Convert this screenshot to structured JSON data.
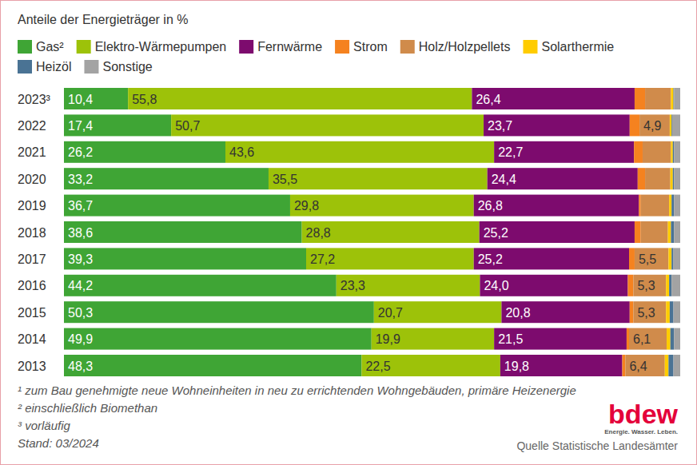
{
  "chart_data": {
    "type": "bar",
    "orientation": "horizontal",
    "stacked": true,
    "data_labels": true,
    "tick_labels": "y",
    "grid": false,
    "legend": "top",
    "title": "Anteile der Energieträger in %",
    "categories": [
      "2023³",
      "2022",
      "2021",
      "2020",
      "2019",
      "2018",
      "2017",
      "2016",
      "2015",
      "2014",
      "2013"
    ],
    "xlim": [
      0,
      100
    ],
    "series": [
      {
        "name": "Gas²",
        "color": "#3fa535",
        "values": [
          10.4,
          17.4,
          26.2,
          33.2,
          36.7,
          38.6,
          39.3,
          44.2,
          50.3,
          49.9,
          48.3
        ],
        "value_labels": [
          "10,4",
          "17,4",
          "26,2",
          "33,2",
          "36,7",
          "38,6",
          "39,3",
          "44,2",
          "50,3",
          "49,9",
          "48,3"
        ]
      },
      {
        "name": "Elektro-Wärmepumpen",
        "color": "#9dc209",
        "values": [
          55.8,
          50.7,
          43.6,
          35.5,
          29.8,
          28.8,
          27.2,
          23.3,
          20.7,
          19.9,
          22.5
        ],
        "value_labels": [
          "55,8",
          "50,7",
          "43,6",
          "35,5",
          "29,8",
          "28,8",
          "27,2",
          "23,3",
          "20,7",
          "19,9",
          "22,5"
        ]
      },
      {
        "name": "Fernwärme",
        "color": "#7d0b6e",
        "values": [
          26.4,
          23.7,
          22.7,
          24.4,
          26.8,
          25.2,
          25.2,
          24.0,
          20.8,
          21.5,
          19.8
        ],
        "value_labels": [
          "26,4",
          "23,7",
          "22,7",
          "24,4",
          "26,8",
          "25,2",
          "25,2",
          "24,0",
          "20,8",
          "21,5",
          "19,8"
        ]
      },
      {
        "name": "Strom",
        "color": "#f5821f",
        "values": [
          1.7,
          1.6,
          1.4,
          1.2,
          0.3,
          1.0,
          0.9,
          0.9,
          0.6,
          0.4,
          0.5
        ],
        "value_labels": [
          null,
          null,
          null,
          null,
          null,
          null,
          null,
          null,
          null,
          null,
          null
        ]
      },
      {
        "name": "Holz/Holzpellets",
        "color": "#d08b4b",
        "values": [
          4.2,
          4.9,
          4.6,
          4.1,
          4.6,
          4.4,
          5.5,
          5.3,
          5.3,
          6.1,
          6.4
        ],
        "value_labels": [
          null,
          "4,9",
          null,
          null,
          null,
          null,
          "5,5",
          "5,3",
          "5,3",
          "6,1",
          "6,4"
        ]
      },
      {
        "name": "Solarthermie",
        "color": "#ffcc00",
        "values": [
          0.4,
          0.3,
          0.3,
          0.4,
          0.4,
          0.5,
          0.5,
          0.5,
          0.6,
          0.6,
          0.6
        ],
        "value_labels": [
          null,
          null,
          null,
          null,
          null,
          null,
          null,
          null,
          null,
          null,
          null
        ]
      },
      {
        "name": "Heizöl",
        "color": "#4a7394",
        "values": [
          0.1,
          0.1,
          0.2,
          0.2,
          0.4,
          0.5,
          0.3,
          0.4,
          0.6,
          0.6,
          0.8
        ],
        "value_labels": [
          null,
          null,
          null,
          null,
          null,
          null,
          null,
          null,
          null,
          null,
          null
        ]
      },
      {
        "name": "Sonstige",
        "color": "#a3a3a3",
        "values": [
          1.0,
          1.3,
          1.0,
          1.0,
          1.0,
          1.0,
          1.1,
          1.4,
          1.1,
          1.0,
          1.1
        ],
        "value_labels": [
          null,
          null,
          null,
          null,
          null,
          null,
          null,
          null,
          null,
          null,
          null
        ]
      }
    ],
    "footnotes": [
      "¹ zum Bau genehmigte neue Wohneinheiten in neu zu errichtenden Wohngebäuden, primäre Heizenergie",
      "² einschließlich Biomethan",
      "³ vorläufig",
      "Stand: 03/2024"
    ],
    "logo": {
      "text": "bdew",
      "tagline": "Energie. Wasser. Leben."
    },
    "source": "Quelle Statistische Landesämter"
  }
}
